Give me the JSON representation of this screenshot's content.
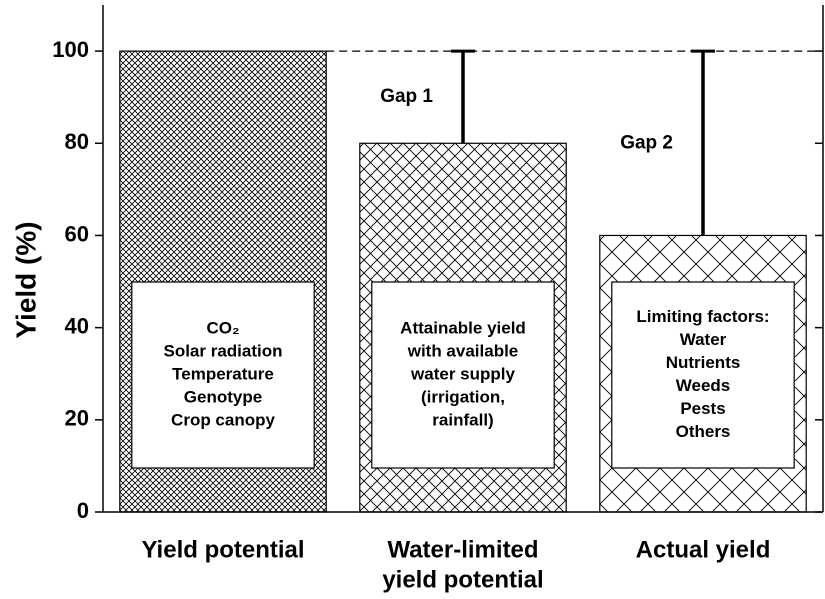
{
  "chart_data": {
    "type": "bar",
    "y_label": "Yield (%)",
    "categories": [
      [
        "Yield potential"
      ],
      [
        "Water-limited",
        "yield potential"
      ],
      [
        "Actual yield"
      ]
    ],
    "values": [
      100,
      80,
      60
    ],
    "color": "#000000",
    "ylim": [
      0,
      110
    ],
    "yticks": [
      0,
      20,
      40,
      60,
      80,
      100
    ],
    "reference": 100,
    "annotations": [
      "Gap 1",
      "Gap 2"
    ],
    "box_texts": [
      [
        "CO₂",
        "Solar radiation",
        "Temperature",
        "Genotype",
        "Crop canopy"
      ],
      [
        "Attainable yield",
        "with available",
        "water supply",
        "(irrigation,",
        "rainfall)"
      ],
      [
        "Limiting factors:",
        "Water",
        "Nutrients",
        "Weeds",
        "Pests",
        "Others"
      ]
    ]
  }
}
